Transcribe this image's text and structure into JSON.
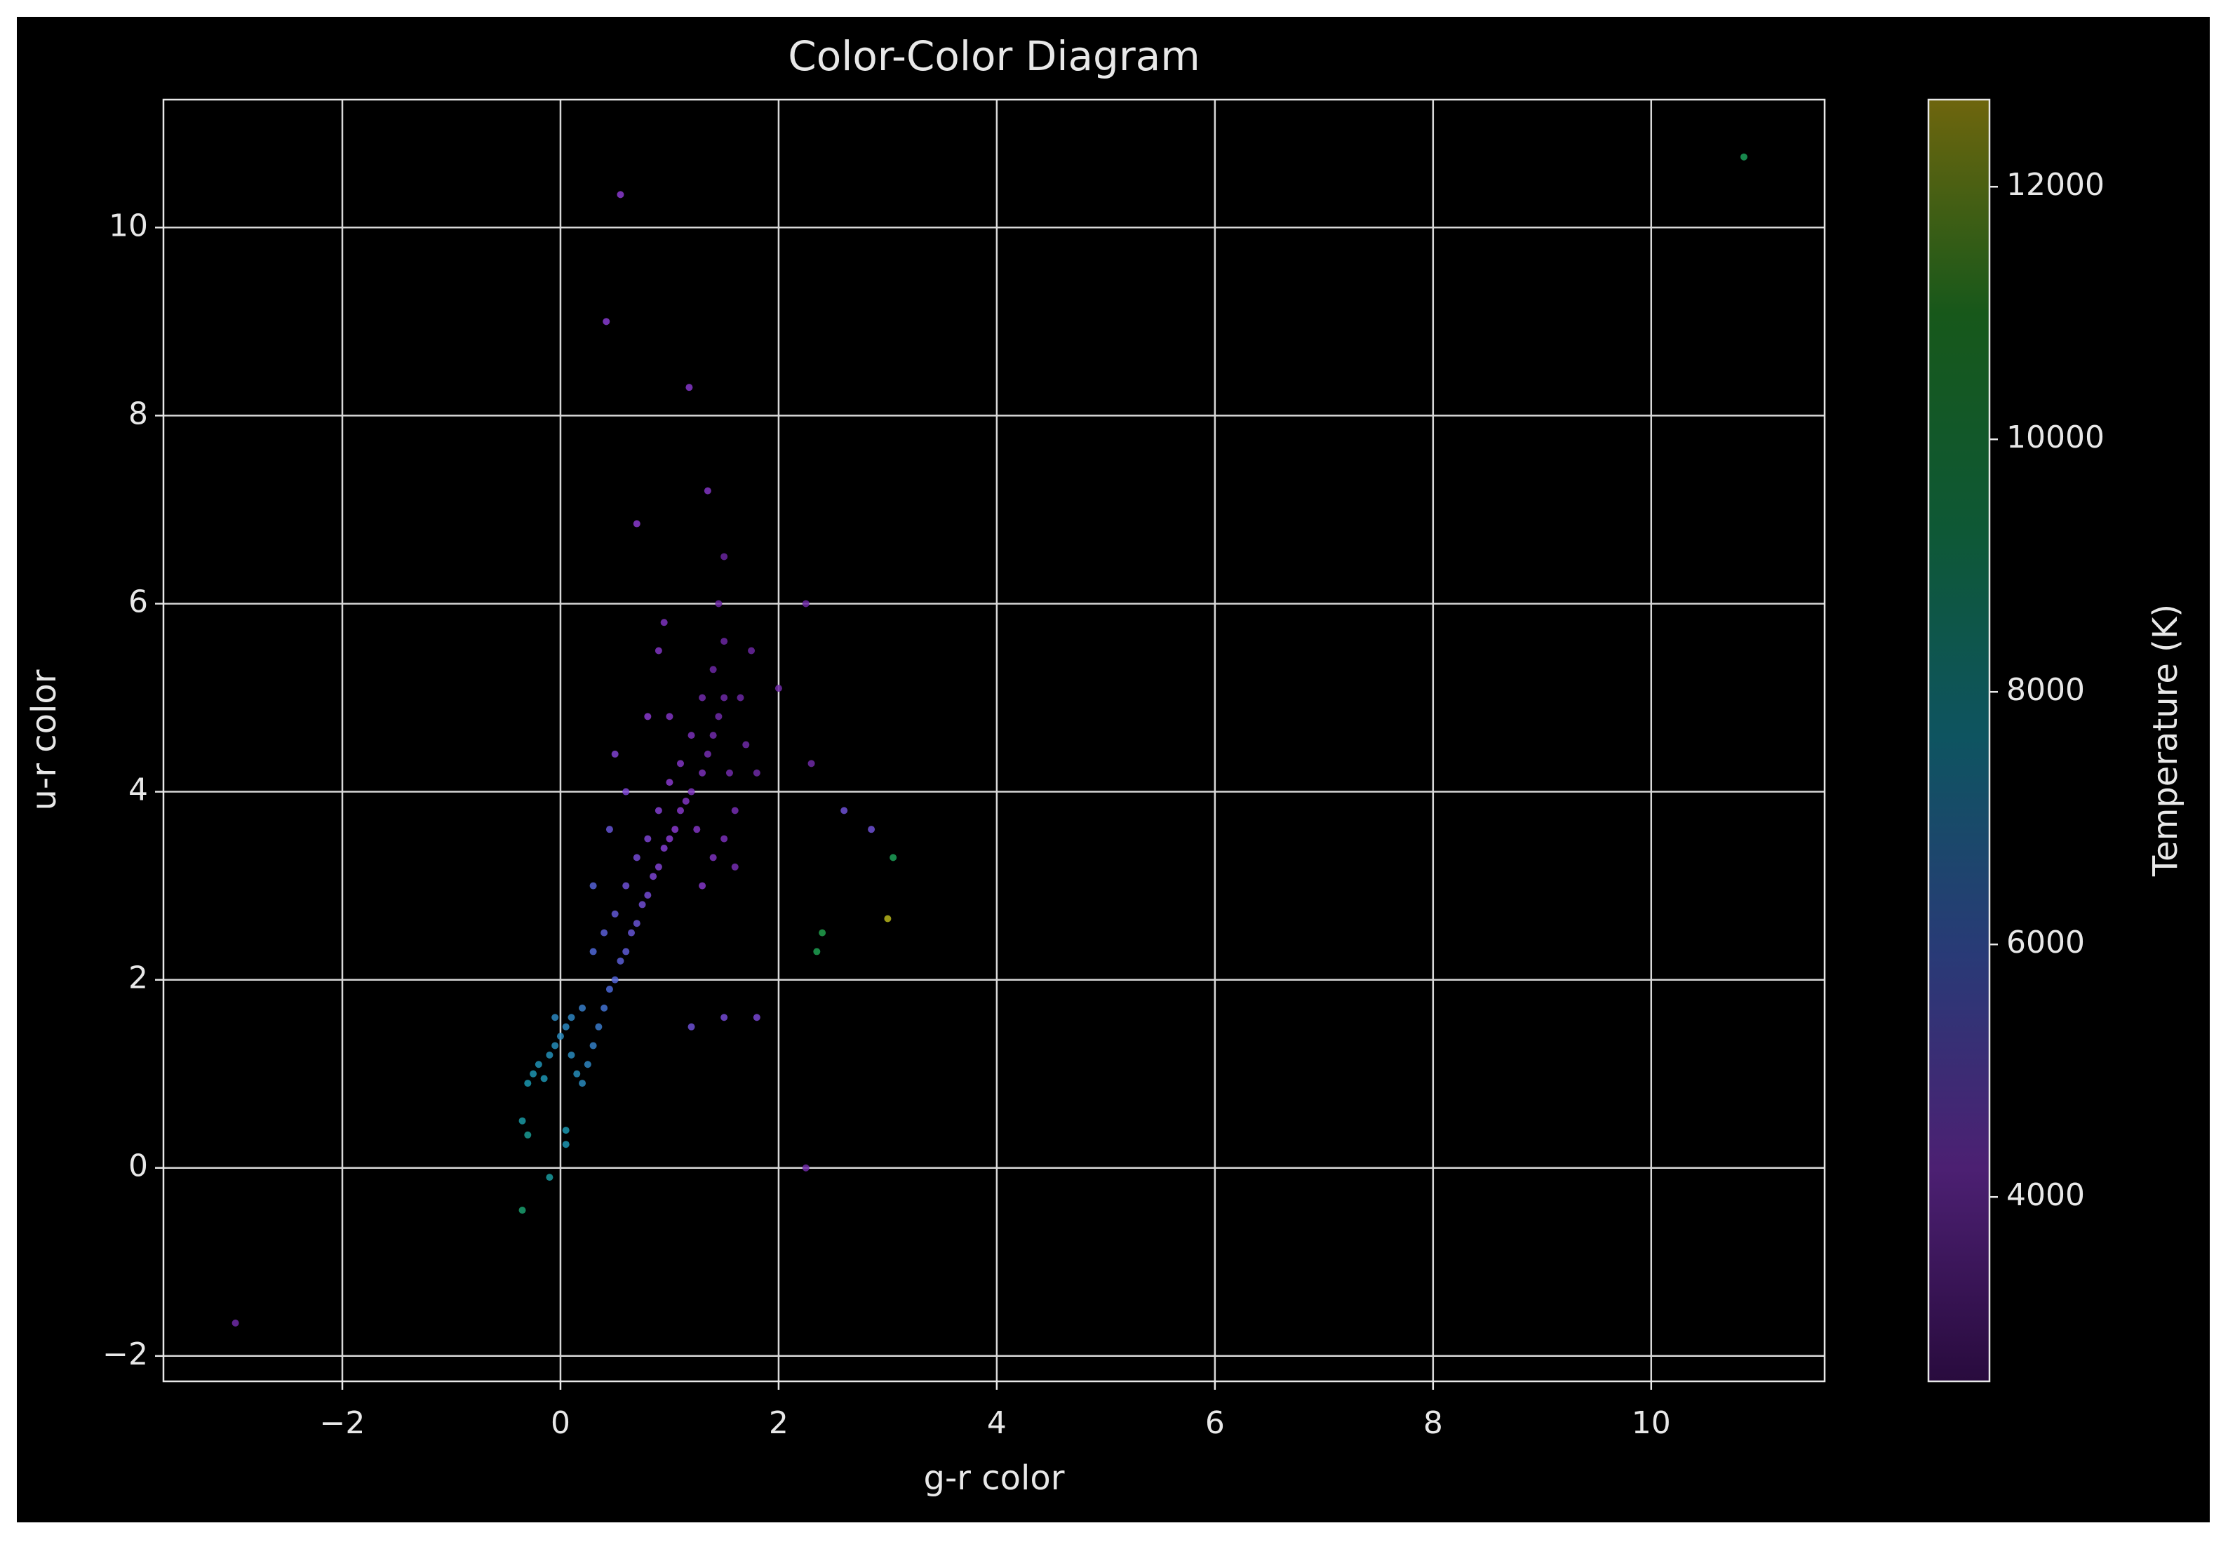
{
  "chart_data": {
    "type": "scatter",
    "title": "Color-Color Diagram",
    "x_label": "g-r color",
    "y_label": "u-r color",
    "colorbar_label": "Temperature (K)",
    "x": [
      -0.3,
      -0.25,
      -0.2,
      -0.15,
      -0.1,
      -0.05,
      0,
      0.05,
      0.1,
      0.15,
      0.2,
      0.25,
      0.3,
      0.35,
      0.1,
      0.2,
      -0.05,
      0.4,
      0.45,
      0.5,
      0.55,
      0.6,
      0.65,
      0.7,
      0.75,
      0.8,
      0.85,
      0.9,
      0.95,
      1.0,
      1.05,
      1.1,
      1.15,
      1.2,
      1.3,
      1.35,
      1.4,
      1.45,
      1.5,
      1.4,
      1.5,
      1.45,
      1.5,
      1.55,
      1.6,
      1.5,
      1.4,
      1.6,
      1.25,
      1.3,
      1.7,
      1.65,
      1.3,
      1.2,
      1.1,
      1.0,
      0.9,
      0.8,
      0.7,
      0.6,
      0.5,
      0.4,
      0.3,
      0.6,
      0.5,
      0.8,
      0.9,
      0.95,
      1.0,
      0.3,
      0.45,
      1.8,
      1.75,
      2.0,
      2.25,
      2.3,
      1.2,
      1.5,
      1.8,
      0.55,
      0.42,
      1.18,
      1.35,
      0.7,
      10.85,
      -2.98,
      -0.35,
      -0.1,
      0.05,
      0.05,
      -0.35,
      -0.3,
      2.4,
      2.35,
      3.0,
      3.05,
      2.85,
      2.6,
      2.25
    ],
    "values": [
      0.9,
      1.0,
      1.1,
      0.95,
      1.2,
      1.3,
      1.4,
      1.5,
      1.2,
      1.0,
      0.9,
      1.1,
      1.3,
      1.5,
      1.6,
      1.7,
      1.6,
      1.7,
      1.9,
      2.0,
      2.2,
      2.3,
      2.5,
      2.6,
      2.8,
      2.9,
      3.1,
      3.2,
      3.4,
      3.5,
      3.6,
      3.8,
      3.9,
      4.0,
      4.2,
      4.4,
      4.6,
      4.8,
      5.0,
      5.3,
      5.6,
      6.0,
      6.5,
      4.2,
      3.8,
      3.5,
      3.3,
      3.2,
      3.6,
      3.0,
      4.5,
      5.0,
      5.0,
      4.6,
      4.3,
      4.1,
      3.8,
      3.5,
      3.3,
      3.0,
      2.7,
      2.5,
      2.3,
      4.0,
      4.4,
      4.8,
      5.5,
      5.8,
      4.8,
      3.0,
      3.6,
      4.2,
      5.5,
      5.1,
      6.0,
      4.3,
      1.5,
      1.6,
      1.6,
      10.35,
      9.0,
      8.3,
      7.2,
      6.85,
      10.75,
      -1.65,
      -0.45,
      -0.1,
      0.25,
      0.4,
      0.5,
      0.35,
      2.5,
      2.3,
      2.65,
      3.3,
      3.6,
      3.8,
      0.0
    ],
    "c": [
      7600,
      7500,
      7400,
      7500,
      7300,
      7200,
      7100,
      7000,
      7100,
      7200,
      7100,
      6900,
      6700,
      6500,
      6900,
      6600,
      7000,
      6200,
      5900,
      5700,
      5500,
      5400,
      5200,
      5100,
      4900,
      4800,
      4600,
      4500,
      4400,
      4300,
      4200,
      4100,
      4000,
      3900,
      3800,
      3700,
      3600,
      3550,
      3500,
      3450,
      3400,
      3400,
      3350,
      3600,
      3700,
      3800,
      3900,
      3700,
      4000,
      4100,
      3500,
      3450,
      3600,
      3800,
      4000,
      4200,
      4400,
      4600,
      4800,
      5000,
      5300,
      5500,
      5800,
      4600,
      4500,
      4200,
      4000,
      3900,
      4000,
      5600,
      5200,
      3500,
      3400,
      3500,
      3400,
      3500,
      5000,
      4800,
      4700,
      4200,
      4300,
      4100,
      4000,
      4200,
      9500,
      3500,
      9000,
      8000,
      7500,
      7600,
      7900,
      8200,
      10000,
      9800,
      12500,
      9600,
      5000,
      5000,
      3500
    ],
    "colormap": [
      "#4a1470",
      "#8a3ad0",
      "#4a6ad8",
      "#1a98b0",
      "#1aa060",
      "#2aa030",
      "#c8b818"
    ],
    "clim": [
      2540,
      12690
    ],
    "cticks": [
      4000,
      6000,
      8000,
      10000,
      12000
    ],
    "xlim": [
      -3.64,
      11.59
    ],
    "xticks": [
      {
        "value": -2,
        "label": "−2"
      },
      0,
      2,
      4,
      6,
      8,
      10
    ],
    "ylim": [
      -2.27,
      11.36
    ],
    "yticks": [
      {
        "value": -2,
        "label": "−2"
      },
      0,
      2,
      4,
      6,
      8,
      10
    ],
    "grid": true
  }
}
